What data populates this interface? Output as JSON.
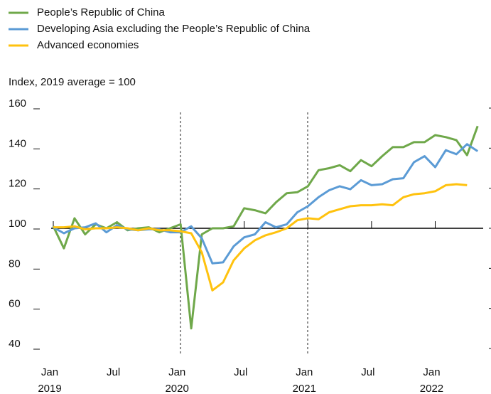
{
  "chart_data": {
    "type": "line",
    "y_label": "Index, 2019 average = 100",
    "categories": [
      "Jan\n2019",
      null,
      null,
      null,
      null,
      null,
      "Jul",
      null,
      null,
      null,
      null,
      null,
      "Jan\n2020",
      null,
      null,
      null,
      null,
      null,
      "Jul",
      null,
      null,
      null,
      null,
      null,
      "Jan\n2021",
      null,
      null,
      null,
      null,
      null,
      "Jul",
      null,
      null,
      null,
      null,
      null,
      "Jan\n2022",
      null,
      null,
      null,
      null
    ],
    "series": [
      {
        "name": "People’s Republic of China",
        "color": "#6fa84a",
        "values": [
          101,
          90,
          105,
          97,
          102,
          100,
          103,
          99,
          100,
          100.5,
          98,
          100,
          102,
          50,
          97,
          100,
          100,
          101,
          110,
          109,
          107.5,
          113,
          117.5,
          118,
          121,
          129,
          130,
          131.5,
          128.5,
          134,
          131,
          136,
          140.5,
          140.5,
          143,
          143,
          146.5,
          145.5,
          144,
          136.5,
          151
        ]
      },
      {
        "name": "Developing Asia excluding the People’s Republic of China",
        "color": "#5b9bd5",
        "values": [
          100.5,
          97.5,
          100,
          100.5,
          102.5,
          98,
          101.5,
          99.5,
          99,
          99.5,
          99.5,
          98,
          98,
          101,
          95,
          82.5,
          83,
          91,
          95.5,
          97,
          103,
          100.5,
          102,
          108,
          111,
          115.5,
          119,
          121,
          119.5,
          124,
          121.5,
          122,
          124.5,
          125,
          133,
          136,
          130.5,
          139,
          137,
          142,
          138.5
        ]
      },
      {
        "name": "Advanced economies",
        "color": "#ffc20e",
        "values": [
          100.5,
          100.5,
          101,
          99.5,
          100,
          100,
          100.5,
          100,
          99,
          100,
          99,
          99,
          98.5,
          97.5,
          88,
          69,
          73,
          84,
          90,
          94,
          96.5,
          98,
          100,
          104,
          105,
          104.5,
          108,
          109.5,
          111,
          111.5,
          111.5,
          112,
          111.5,
          115.5,
          117,
          117.5,
          118.5,
          121.5,
          122,
          121.5,
          null
        ]
      }
    ],
    "ylim": [
      40,
      160
    ],
    "yticks": [
      40,
      60,
      80,
      100,
      120,
      140,
      160
    ],
    "baseline": 100
  }
}
